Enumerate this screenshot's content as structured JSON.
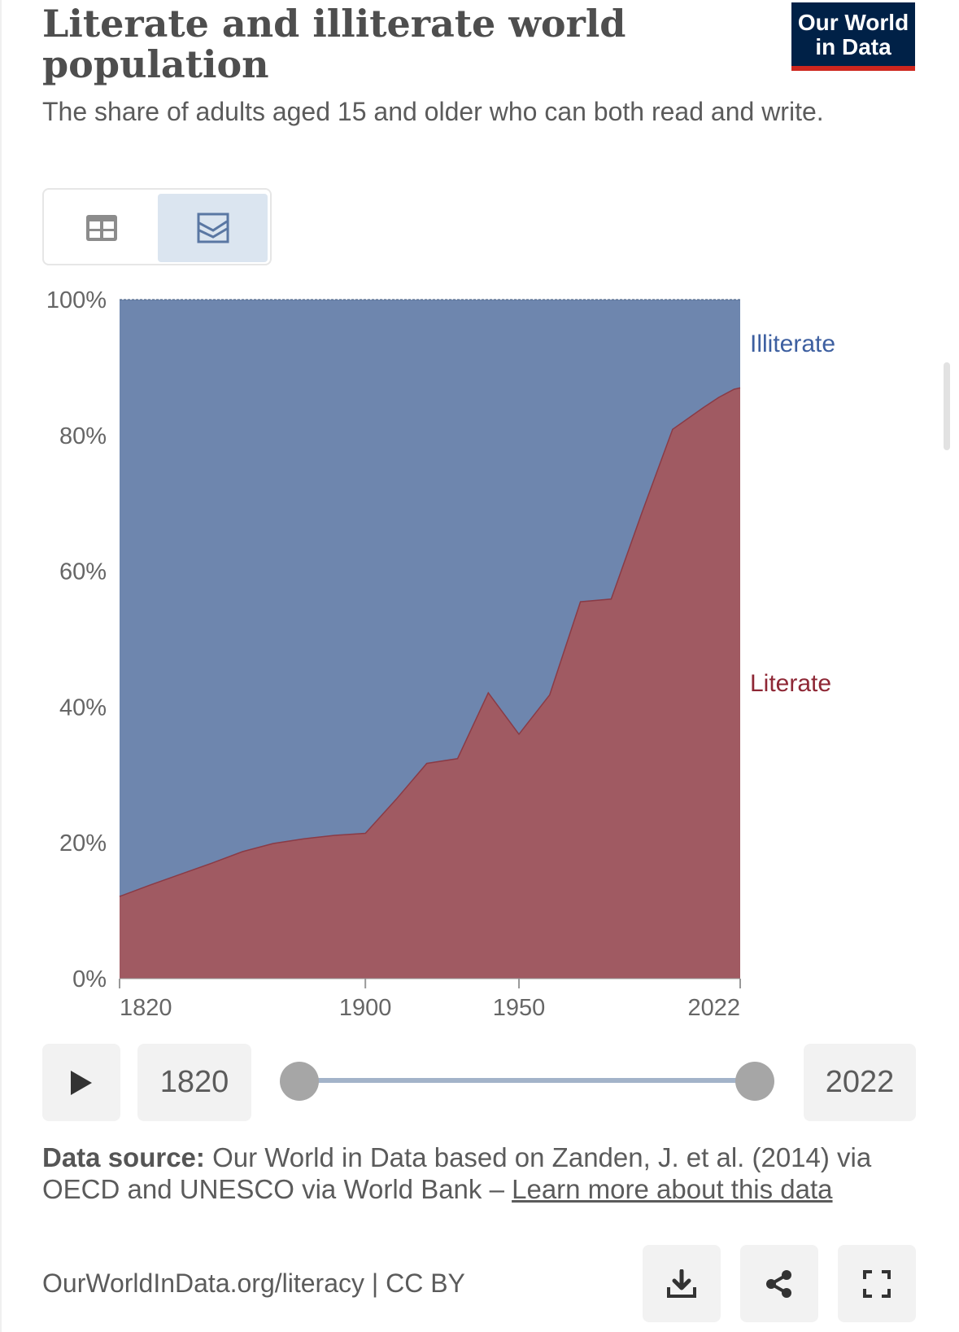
{
  "header": {
    "title": "Literate and illiterate world population",
    "subtitle": "The share of adults aged 15 and older who can both read and write.",
    "logo_line1": "Our World",
    "logo_line2": "in Data"
  },
  "view_toggle": {
    "table_icon": "table-icon",
    "chart_icon": "chart-icon",
    "active": "chart"
  },
  "chart_data": {
    "type": "area",
    "stacked": true,
    "title": "Literate and illiterate world population",
    "subtitle": "The share of adults aged 15 and older who can both read and write.",
    "x_ticks": [
      "1820",
      "1900",
      "1950",
      "2022"
    ],
    "y_ticks": [
      "0%",
      "20%",
      "40%",
      "60%",
      "80%",
      "100%"
    ],
    "ylim": [
      0,
      100
    ],
    "xlim": [
      1820,
      2022
    ],
    "series": [
      {
        "name": "Literate",
        "color": "#a05a62",
        "points": [
          [
            1820,
            12.1
          ],
          [
            1830,
            13.8
          ],
          [
            1840,
            15.4
          ],
          [
            1850,
            17.0
          ],
          [
            1860,
            18.7
          ],
          [
            1870,
            19.9
          ],
          [
            1880,
            20.6
          ],
          [
            1890,
            21.1
          ],
          [
            1900,
            21.4
          ],
          [
            1910,
            26.4
          ],
          [
            1920,
            31.7
          ],
          [
            1930,
            32.4
          ],
          [
            1940,
            42.1
          ],
          [
            1950,
            36.0
          ],
          [
            1960,
            41.8
          ],
          [
            1970,
            55.5
          ],
          [
            1980,
            55.9
          ],
          [
            1990,
            68.6
          ],
          [
            2000,
            80.9
          ],
          [
            2005,
            82.5
          ],
          [
            2010,
            84.1
          ],
          [
            2015,
            85.6
          ],
          [
            2020,
            86.8
          ],
          [
            2022,
            87.0
          ]
        ]
      },
      {
        "name": "Illiterate",
        "color": "#6e86ae",
        "points": [
          [
            1820,
            87.9
          ],
          [
            1830,
            86.2
          ],
          [
            1840,
            84.6
          ],
          [
            1850,
            83.0
          ],
          [
            1860,
            81.3
          ],
          [
            1870,
            80.1
          ],
          [
            1880,
            79.4
          ],
          [
            1890,
            78.9
          ],
          [
            1900,
            78.6
          ],
          [
            1910,
            73.6
          ],
          [
            1920,
            68.3
          ],
          [
            1930,
            67.6
          ],
          [
            1940,
            57.9
          ],
          [
            1950,
            64.0
          ],
          [
            1960,
            58.2
          ],
          [
            1970,
            44.5
          ],
          [
            1980,
            44.1
          ],
          [
            1990,
            31.4
          ],
          [
            2000,
            19.1
          ],
          [
            2005,
            17.5
          ],
          [
            2010,
            15.9
          ],
          [
            2015,
            14.4
          ],
          [
            2020,
            13.2
          ],
          [
            2022,
            13.0
          ]
        ]
      }
    ],
    "series_label_colors": {
      "Literate": "#8e2735",
      "Illiterate": "#3d5fa0"
    },
    "grid": true
  },
  "timeline": {
    "start_year": "1820",
    "end_year": "2022",
    "play_icon": "play-icon"
  },
  "footer": {
    "source_label": "Data source:",
    "source_text": " Our World in Data based on Zanden, J. et al. (2014) via OECD and UNESCO via World Bank – ",
    "learn_more": "Learn more about this data",
    "url": "OurWorldInData.org/literacy | CC BY",
    "download_icon": "download-icon",
    "share_icon": "share-icon",
    "fullscreen_icon": "fullscreen-icon"
  }
}
